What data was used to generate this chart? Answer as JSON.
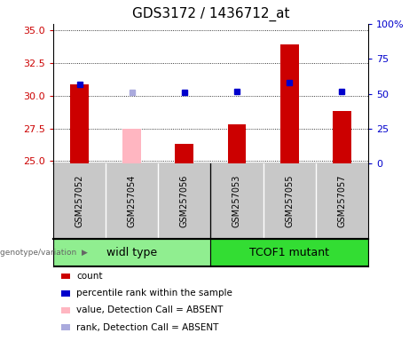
{
  "title": "GDS3172 / 1436712_at",
  "samples": [
    "GSM257052",
    "GSM257054",
    "GSM257056",
    "GSM257053",
    "GSM257055",
    "GSM257057"
  ],
  "count_values": [
    30.9,
    null,
    26.3,
    27.8,
    33.9,
    28.8
  ],
  "count_absent": [
    null,
    27.5,
    null,
    null,
    null,
    null
  ],
  "rank_values": [
    30.9,
    null,
    30.25,
    30.35,
    31.0,
    30.35
  ],
  "rank_absent": [
    null,
    30.25,
    null,
    null,
    null,
    null
  ],
  "bar_color_present": "#CC0000",
  "bar_color_absent": "#FFB6C1",
  "rank_color_present": "#0000CC",
  "rank_color_absent": "#AAAADD",
  "ylim_left": [
    24.8,
    35.5
  ],
  "ylim_right": [
    0,
    100
  ],
  "yticks_left": [
    25,
    27.5,
    30,
    32.5,
    35
  ],
  "yticks_right": [
    0,
    25,
    50,
    75,
    100
  ],
  "yticklabels_right": [
    "0",
    "25",
    "50",
    "75",
    "100%"
  ],
  "group1_label": "widl type",
  "group1_color": "#90EE90",
  "group1_indices": [
    0,
    1,
    2
  ],
  "group2_label": "TCOF1 mutant",
  "group2_color": "#33DD33",
  "group2_indices": [
    3,
    4,
    5
  ],
  "sample_label_bg": "#C8C8C8",
  "bar_width": 0.35,
  "marker_size": 5,
  "title_fontsize": 11,
  "tick_fontsize": 8,
  "legend_fontsize": 7.5,
  "sample_fontsize": 7,
  "group_fontsize": 9
}
